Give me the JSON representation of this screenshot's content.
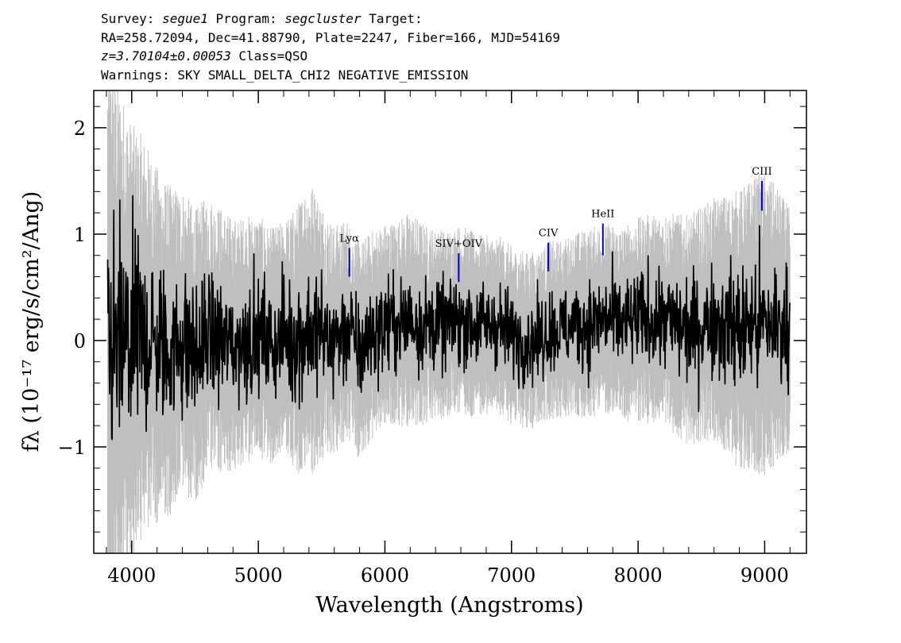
{
  "header": {
    "survey_label": "Survey:",
    "survey": "segue1",
    "program_label": "Program:",
    "program": "segcluster",
    "target_label": "Target:",
    "coords": "RA=258.72094, Dec=41.88790, Plate=2247, Fiber=166, MJD=54169",
    "redshift": "z=3.70104±0.00053",
    "class": "Class=QSO",
    "warnings": "Warnings: SKY SMALL_DELTA_CHI2 NEGATIVE_EMISSION"
  },
  "chart_data": {
    "type": "line",
    "title": "",
    "xlabel": "Wavelength (Angstroms)",
    "ylabel": "fλ (10⁻¹⁷ erg/s/cm²/Ang)",
    "xlim": [
      3700,
      9330
    ],
    "ylim": [
      -2.0,
      2.35
    ],
    "x_ticks": [
      4000,
      5000,
      6000,
      7000,
      8000,
      9000
    ],
    "y_ticks": [
      -1,
      0,
      1,
      2
    ],
    "grid": false,
    "series": [
      {
        "color": "#bfbfbf",
        "style": "error band",
        "x_range": [
          3810,
          9200
        ],
        "points": [
          [
            3810,
            2.3
          ],
          [
            3900,
            2.1
          ],
          [
            4000,
            1.7
          ],
          [
            4200,
            1.4
          ],
          [
            4400,
            1.2
          ],
          [
            4600,
            1.1
          ],
          [
            4800,
            1.0
          ],
          [
            5000,
            0.95
          ],
          [
            5200,
            0.9
          ],
          [
            5400,
            1.2
          ],
          [
            5600,
            0.9
          ],
          [
            5800,
            0.85
          ],
          [
            6000,
            0.8
          ],
          [
            6200,
            0.85
          ],
          [
            6400,
            0.75
          ],
          [
            6600,
            0.75
          ],
          [
            6800,
            0.7
          ],
          [
            7000,
            0.7
          ],
          [
            7200,
            0.7
          ],
          [
            7400,
            0.7
          ],
          [
            7600,
            0.75
          ],
          [
            7800,
            0.75
          ],
          [
            8000,
            0.8
          ],
          [
            8200,
            0.85
          ],
          [
            8400,
            0.9
          ],
          [
            8600,
            0.95
          ],
          [
            8800,
            1.1
          ],
          [
            9000,
            1.2
          ],
          [
            9200,
            0.95
          ]
        ]
      },
      {
        "color": "#000000",
        "style": "flux",
        "x_range": [
          3810,
          9200
        ],
        "points": [
          [
            3810,
            0.0
          ],
          [
            3900,
            -0.1
          ],
          [
            4000,
            0.0
          ],
          [
            4100,
            0.05
          ],
          [
            4200,
            -0.05
          ],
          [
            4300,
            -0.1
          ],
          [
            4400,
            0.0
          ],
          [
            4500,
            -0.15
          ],
          [
            4600,
            0.05
          ],
          [
            4700,
            0.0
          ],
          [
            4800,
            -0.05
          ],
          [
            4900,
            0.0
          ],
          [
            5000,
            0.05
          ],
          [
            5100,
            -0.05
          ],
          [
            5200,
            0.05
          ],
          [
            5300,
            0.0
          ],
          [
            5400,
            0.1
          ],
          [
            5500,
            0.05
          ],
          [
            5600,
            0.0
          ],
          [
            5700,
            0.1
          ],
          [
            5800,
            -0.1
          ],
          [
            5900,
            0.05
          ],
          [
            6000,
            0.15
          ],
          [
            6100,
            0.15
          ],
          [
            6200,
            0.2
          ],
          [
            6300,
            0.15
          ],
          [
            6400,
            0.15
          ],
          [
            6500,
            0.15
          ],
          [
            6600,
            0.2
          ],
          [
            6700,
            0.15
          ],
          [
            6800,
            0.15
          ],
          [
            6900,
            0.15
          ],
          [
            7000,
            0.05
          ],
          [
            7100,
            0.0
          ],
          [
            7200,
            0.0
          ],
          [
            7300,
            0.1
          ],
          [
            7400,
            0.1
          ],
          [
            7500,
            0.15
          ],
          [
            7600,
            0.15
          ],
          [
            7700,
            0.2
          ],
          [
            7800,
            0.2
          ],
          [
            7900,
            0.15
          ],
          [
            8000,
            0.2
          ],
          [
            8100,
            0.2
          ],
          [
            8200,
            0.2
          ],
          [
            8300,
            0.15
          ],
          [
            8400,
            0.1
          ],
          [
            8500,
            0.15
          ],
          [
            8600,
            0.2
          ],
          [
            8700,
            0.15
          ],
          [
            8800,
            0.1
          ],
          [
            8900,
            0.15
          ],
          [
            9000,
            0.15
          ],
          [
            9100,
            0.15
          ],
          [
            9200,
            0.1
          ]
        ]
      }
    ],
    "annotations": [
      {
        "label": "Lyα",
        "x": 5719,
        "y_top": 0.87,
        "y_bottom": 0.6
      },
      {
        "label": "SIV+OIV",
        "x": 6583,
        "y_top": 0.82,
        "y_bottom": 0.55
      },
      {
        "label": "CIV",
        "x": 7291,
        "y_top": 0.92,
        "y_bottom": 0.65
      },
      {
        "label": "HeII",
        "x": 7722,
        "y_top": 1.1,
        "y_bottom": 0.8
      },
      {
        "label": "CIII",
        "x": 8978,
        "y_top": 1.5,
        "y_bottom": 1.22
      }
    ]
  },
  "colors": {
    "error": "#bfbfbf",
    "flux": "#000000",
    "line_marker": "#0000cc"
  }
}
